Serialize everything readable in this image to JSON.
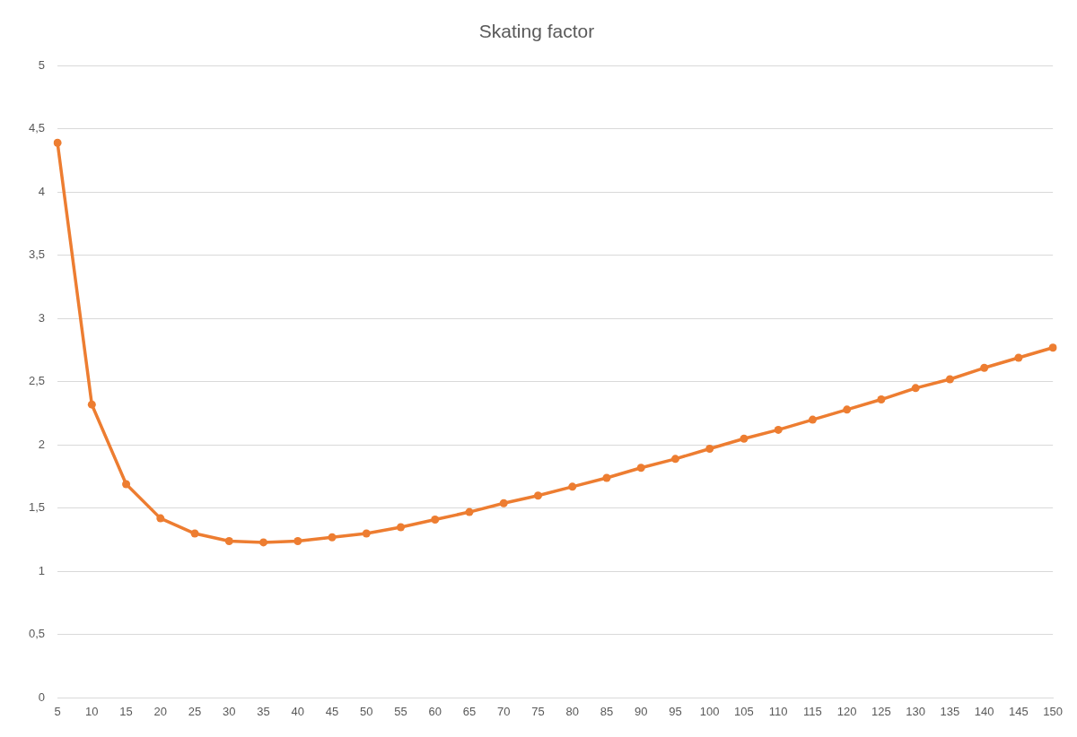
{
  "chart_data": {
    "type": "line",
    "title": "Skating factor",
    "categories": [
      "5",
      "10",
      "15",
      "20",
      "25",
      "30",
      "35",
      "40",
      "45",
      "50",
      "55",
      "60",
      "65",
      "70",
      "75",
      "80",
      "85",
      "90",
      "95",
      "100",
      "105",
      "110",
      "115",
      "120",
      "125",
      "130",
      "135",
      "140",
      "145",
      "150"
    ],
    "series": [
      {
        "color": "#ed7d31",
        "values": [
          4.39,
          2.32,
          1.69,
          1.42,
          1.3,
          1.24,
          1.23,
          1.24,
          1.27,
          1.3,
          1.35,
          1.41,
          1.47,
          1.54,
          1.6,
          1.67,
          1.74,
          1.82,
          1.89,
          1.97,
          2.05,
          2.12,
          2.2,
          2.28,
          2.36,
          2.45,
          2.52,
          2.61,
          2.69,
          2.77
        ]
      }
    ],
    "ylim": [
      0,
      5
    ],
    "yticks": [
      0,
      {
        "value": 0.5,
        "label": "0,5"
      },
      1,
      {
        "value": 1.5,
        "label": "1,5"
      },
      2,
      {
        "value": 2.5,
        "label": "2,5"
      },
      3,
      {
        "value": 3.5,
        "label": "3,5"
      },
      4,
      {
        "value": 4.5,
        "label": "4,5"
      },
      5
    ],
    "grid": "y",
    "legend": false,
    "marker": "circle",
    "line_style": "solid"
  }
}
